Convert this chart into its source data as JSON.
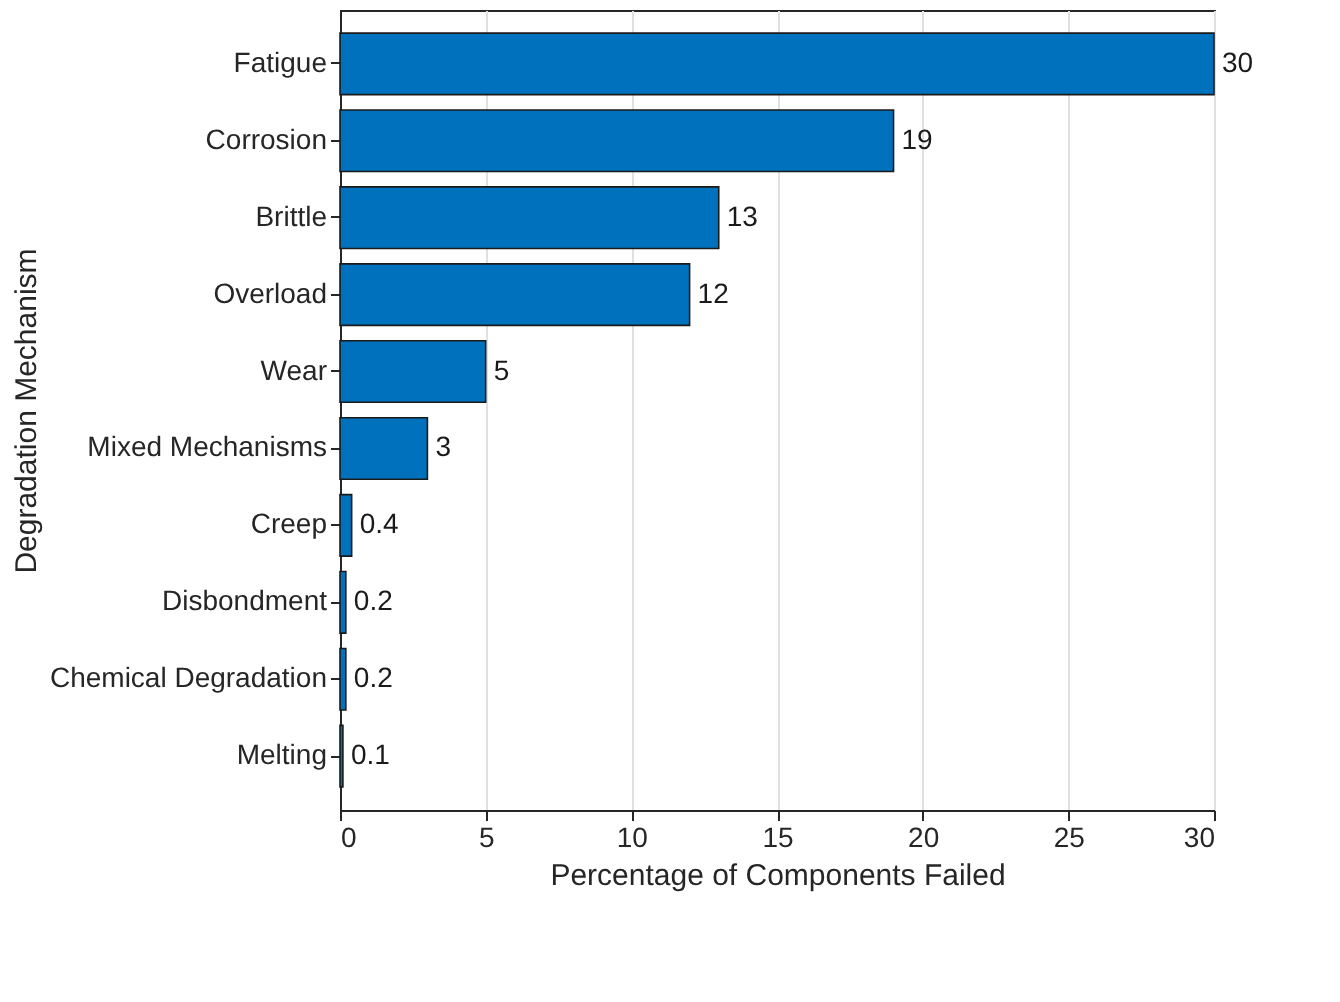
{
  "chart_data": {
    "type": "bar",
    "orientation": "horizontal",
    "xlabel": "Percentage of Components Failed",
    "ylabel": "Degradation Mechanism",
    "categories": [
      "Fatigue",
      "Corrosion",
      "Brittle",
      "Overload",
      "Wear",
      "Mixed Mechanisms",
      "Creep",
      "Disbondment",
      "Chemical Degradation",
      "Melting"
    ],
    "values": [
      30,
      19,
      13,
      12,
      5,
      3,
      0.4,
      0.2,
      0.2,
      0.1
    ],
    "color": "#0072bd",
    "xlim": [
      0,
      30
    ],
    "xticks": [
      0,
      5,
      10,
      15,
      20,
      25,
      30
    ],
    "grid": "x",
    "data_labels": true
  }
}
